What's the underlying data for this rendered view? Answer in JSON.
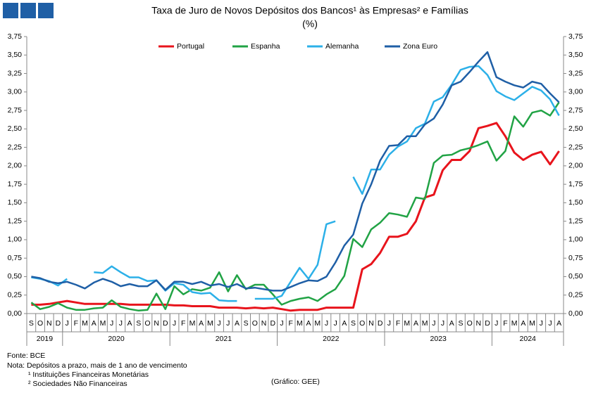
{
  "chart_data": {
    "type": "line",
    "title": "Taxa de Juro de Novos Depósitos dos Bancos¹ às Empresas² e Famílias",
    "subtitle": "(%)",
    "categories": [
      "S",
      "O",
      "N",
      "D",
      "J",
      "F",
      "M",
      "A",
      "M",
      "J",
      "J",
      "A",
      "S",
      "O",
      "N",
      "D",
      "J",
      "F",
      "M",
      "A",
      "M",
      "J",
      "J",
      "A",
      "S",
      "O",
      "N",
      "D",
      "J",
      "F",
      "M",
      "A",
      "M",
      "J",
      "J",
      "A",
      "S",
      "O",
      "N",
      "D",
      "J",
      "F",
      "M",
      "A",
      "M",
      "J",
      "J",
      "A",
      "S",
      "O",
      "N",
      "D",
      "J",
      "F",
      "M",
      "A",
      "M",
      "J",
      "J",
      "A"
    ],
    "years": [
      "2019",
      "2020",
      "2021",
      "2022",
      "2023",
      "2024"
    ],
    "series": [
      {
        "name": "Portugal",
        "color": "#e8141c",
        "values": [
          0.12,
          0.12,
          0.13,
          0.15,
          0.17,
          0.15,
          0.13,
          0.13,
          0.13,
          0.13,
          0.13,
          0.12,
          0.12,
          0.12,
          0.12,
          0.12,
          0.11,
          0.11,
          0.1,
          0.1,
          0.1,
          0.08,
          0.08,
          0.08,
          0.07,
          0.08,
          0.07,
          0.08,
          0.06,
          0.04,
          0.05,
          0.05,
          0.05,
          0.08,
          0.08,
          0.08,
          0.08,
          0.6,
          0.67,
          0.82,
          1.04,
          1.04,
          1.08,
          1.25,
          1.57,
          1.61,
          1.94,
          2.08,
          2.08,
          2.2,
          2.51,
          2.54,
          2.58,
          2.4,
          2.18,
          2.08,
          2.15,
          2.19,
          2.02,
          2.2
        ]
      },
      {
        "name": "Espanha",
        "color": "#21a345",
        "values": [
          0.15,
          0.06,
          0.09,
          0.14,
          0.08,
          0.05,
          0.05,
          0.07,
          0.08,
          0.18,
          0.09,
          0.06,
          0.04,
          0.05,
          0.27,
          0.06,
          0.37,
          0.26,
          0.33,
          0.31,
          0.35,
          0.56,
          0.3,
          0.52,
          0.33,
          0.39,
          0.39,
          0.26,
          0.12,
          0.17,
          0.2,
          0.22,
          0.17,
          0.26,
          0.33,
          0.51,
          1.01,
          0.9,
          1.14,
          1.23,
          1.36,
          1.34,
          1.31,
          1.57,
          1.55,
          2.04,
          2.14,
          2.15,
          2.21,
          2.24,
          2.28,
          2.33,
          2.07,
          2.2,
          2.67,
          2.53,
          2.72,
          2.75,
          2.68,
          2.86
        ]
      },
      {
        "name": "Alemanha",
        "color": "#2cb0e8",
        "values": [
          0.49,
          0.47,
          0.44,
          0.38,
          0.47,
          null,
          null,
          0.56,
          0.55,
          0.64,
          0.56,
          0.49,
          0.49,
          0.44,
          0.45,
          0.31,
          0.41,
          0.39,
          0.29,
          0.27,
          0.28,
          0.18,
          0.17,
          0.17,
          null,
          0.2,
          0.2,
          0.2,
          0.24,
          0.43,
          0.62,
          0.47,
          0.66,
          1.21,
          1.25,
          null,
          1.85,
          1.62,
          1.95,
          1.95,
          2.15,
          2.26,
          2.33,
          2.51,
          2.57,
          2.87,
          2.93,
          3.1,
          3.3,
          3.34,
          3.35,
          3.23,
          3.01,
          2.94,
          2.89,
          2.98,
          3.07,
          3.02,
          2.9,
          2.68
        ]
      },
      {
        "name": "Zona Euro",
        "color": "#1f5fa6",
        "values": [
          0.5,
          0.48,
          0.43,
          0.41,
          0.43,
          0.39,
          0.34,
          0.42,
          0.47,
          0.43,
          0.37,
          0.4,
          0.37,
          0.37,
          0.45,
          0.32,
          0.43,
          0.43,
          0.4,
          0.43,
          0.38,
          0.4,
          0.36,
          0.4,
          0.34,
          0.35,
          0.33,
          0.31,
          0.31,
          0.36,
          0.41,
          0.45,
          0.44,
          0.5,
          0.69,
          0.92,
          1.07,
          1.49,
          1.75,
          2.07,
          2.27,
          2.28,
          2.4,
          2.4,
          2.56,
          2.64,
          2.83,
          3.09,
          3.14,
          3.27,
          3.41,
          3.54,
          3.2,
          3.14,
          3.09,
          3.06,
          3.14,
          3.11,
          2.98,
          2.86
        ]
      }
    ],
    "ylim": [
      0,
      3.75
    ],
    "yticks": [
      {
        "value": 0,
        "label": "0,00"
      },
      {
        "value": 0.25,
        "label": "0,25"
      },
      {
        "value": 0.5,
        "label": "0,50"
      },
      {
        "value": 0.75,
        "label": "0,75"
      },
      {
        "value": 1,
        "label": "1,00"
      },
      {
        "value": 1.25,
        "label": "1,25"
      },
      {
        "value": 1.5,
        "label": "1,50"
      },
      {
        "value": 1.75,
        "label": "1,75"
      },
      {
        "value": 2,
        "label": "2,00"
      },
      {
        "value": 2.25,
        "label": "2,25"
      },
      {
        "value": 2.5,
        "label": "2,50"
      },
      {
        "value": 2.75,
        "label": "2,75"
      },
      {
        "value": 3,
        "label": "3,00"
      },
      {
        "value": 3.25,
        "label": "3,25"
      },
      {
        "value": 3.5,
        "label": "3,50"
      },
      {
        "value": 3.75,
        "label": "3,75"
      }
    ],
    "y2lim": [
      0,
      3.75
    ],
    "y2ticks": [
      {
        "value": 0,
        "label": "0,00"
      },
      {
        "value": 0.25,
        "label": "0,25"
      },
      {
        "value": 0.5,
        "label": "0,50"
      },
      {
        "value": 0.75,
        "label": "0,75"
      },
      {
        "value": 1,
        "label": "1,00"
      },
      {
        "value": 1.25,
        "label": "1,25"
      },
      {
        "value": 1.5,
        "label": "1,50"
      },
      {
        "value": 1.75,
        "label": "1,75"
      },
      {
        "value": 2,
        "label": "2,00"
      },
      {
        "value": 2.25,
        "label": "2,25"
      },
      {
        "value": 2.5,
        "label": "2,50"
      },
      {
        "value": 2.75,
        "label": "2,75"
      },
      {
        "value": 3,
        "label": "3,00"
      },
      {
        "value": 3.25,
        "label": "3,25"
      },
      {
        "value": 3.5,
        "label": "3,50"
      },
      {
        "value": 3.75,
        "label": "3,75"
      }
    ],
    "grid": false,
    "legend": "top",
    "source": "Fonte: BCE",
    "note": "Nota: Depósitos a prazo, mais de 1 ano de vencimento",
    "footnotes": [
      "¹ Instituições Financeiras Monetárias",
      "² Sociedades Não Financeiras"
    ],
    "credit": "(Gráfico: GEE)"
  }
}
